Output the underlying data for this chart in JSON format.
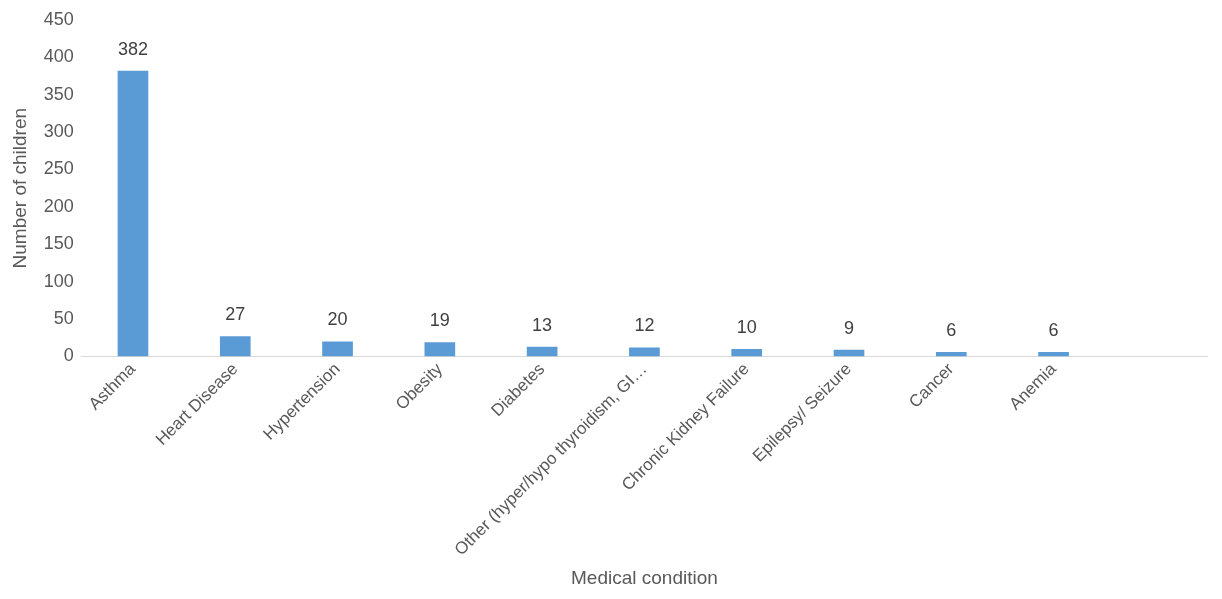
{
  "chart_data": {
    "type": "bar",
    "xlabel": "Medical condition",
    "ylabel": "Number of children",
    "categories": [
      "Asthma",
      "Heart Disease",
      "Hypertension",
      "Obesity",
      "Diabetes",
      "Other (hyper/hypo thyroidism, GI…",
      "Chronic Kidney Failure",
      "Epilepsy/ Seizure",
      "Cancer",
      "Anemia",
      null
    ],
    "values": [
      382,
      27,
      20,
      19,
      13,
      12,
      10,
      9,
      6,
      6,
      null
    ],
    "color": "#5b9bd5",
    "ylim": [
      0,
      450
    ],
    "yticks": [
      0,
      50,
      100,
      150,
      200,
      250,
      300,
      350,
      400,
      450
    ],
    "grid": false,
    "legend": false,
    "data_labels": true
  }
}
